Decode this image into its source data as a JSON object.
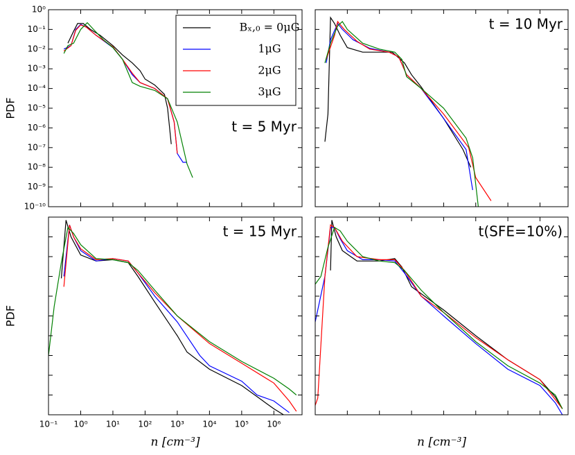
{
  "chart_data": [
    {
      "type": "line",
      "annotation": "t = 5 Myr",
      "ylabel": "PDF",
      "yscale": "log",
      "xscale": "log",
      "sharex": true,
      "legend": "upper right",
      "grid": false,
      "ylim": [
        1e-10,
        1
      ],
      "yticks": [
        {
          "value": 1,
          "label": "10⁰"
        },
        {
          "value": 0.1,
          "label": "10⁻¹"
        },
        {
          "value": 0.01,
          "label": "10⁻²"
        },
        {
          "value": 0.001,
          "label": "10⁻³"
        },
        {
          "value": 0.0001,
          "label": "10⁻⁴"
        },
        {
          "value": 1e-05,
          "label": "10⁻⁵"
        },
        {
          "value": 1e-06,
          "label": "10⁻⁶"
        },
        {
          "value": 1e-07,
          "label": "10⁻⁷"
        },
        {
          "value": 1e-08,
          "label": "10⁻⁸"
        },
        {
          "value": 1e-09,
          "label": "10⁻⁹"
        },
        {
          "value": 1e-10,
          "label": "10⁻¹⁰"
        }
      ],
      "series": [
        {
          "name": "Bₓ,₀ = 0μG",
          "color": "#000000",
          "x": [
            0.4,
            0.6,
            0.8,
            1.2,
            2,
            4,
            10,
            20,
            40,
            70,
            100,
            200,
            400,
            500,
            650
          ],
          "values": [
            0.02,
            0.08,
            0.2,
            0.2,
            0.1,
            0.05,
            0.015,
            0.005,
            0.002,
            0.0008,
            0.0003,
            0.00015,
            5e-05,
            1e-05,
            1.5e-07
          ]
        },
        {
          "name": "1μG",
          "color": "#0000ff",
          "x": [
            0.3,
            0.5,
            0.7,
            1,
            1.5,
            3,
            10,
            20,
            40,
            70,
            200,
            500,
            800,
            1000,
            1500,
            2000
          ],
          "values": [
            0.01,
            0.015,
            0.1,
            0.18,
            0.13,
            0.05,
            0.012,
            0.003,
            0.0005,
            0.0002,
            0.0001,
            3e-05,
            2e-06,
            5e-08,
            1.8e-08,
            1.8e-08
          ]
        },
        {
          "name": "2μG",
          "color": "#ff0000",
          "x": [
            0.3,
            0.5,
            0.7,
            1,
            1.5,
            3,
            10,
            20,
            40,
            70,
            200,
            500,
            800,
            1000
          ],
          "values": [
            0.008,
            0.015,
            0.09,
            0.17,
            0.13,
            0.05,
            0.013,
            0.003,
            0.0006,
            0.0002,
            0.0001,
            3e-05,
            2e-06,
            5e-08
          ]
        },
        {
          "name": "3μG",
          "color": "#008000",
          "x": [
            0.3,
            0.4,
            0.6,
            1,
            1.6,
            2.5,
            5,
            10,
            20,
            40,
            70,
            200,
            500,
            1000,
            2000,
            3000
          ],
          "values": [
            0.006,
            0.015,
            0.02,
            0.1,
            0.22,
            0.1,
            0.03,
            0.012,
            0.003,
            0.0002,
            0.00013,
            8e-05,
            3e-05,
            2e-06,
            1.5e-08,
            3e-09
          ]
        }
      ]
    },
    {
      "type": "line",
      "annotation": "t = 10 Myr",
      "yscale": "log",
      "xscale": "log",
      "sharex": true,
      "sharey": true,
      "grid": false,
      "series": [
        {
          "color": "#000000",
          "x": [
            0.2,
            0.25,
            0.3,
            0.4,
            0.6,
            1,
            3,
            10,
            25,
            60,
            100,
            200,
            1000,
            4000,
            7000
          ],
          "values": [
            2e-07,
            5e-06,
            0.4,
            0.2,
            0.05,
            0.012,
            0.007,
            0.007,
            0.007,
            0.002,
            0.0005,
            0.00012,
            3e-06,
            8e-08,
            1e-08
          ]
        },
        {
          "color": "#0000ff",
          "x": [
            0.22,
            0.3,
            0.5,
            0.7,
            1.5,
            5,
            20,
            40,
            70,
            200,
            1000,
            5000,
            8000
          ],
          "values": [
            0.002,
            0.03,
            0.2,
            0.1,
            0.03,
            0.011,
            0.007,
            0.004,
            0.0005,
            0.0001,
            3e-06,
            8e-08,
            7e-10
          ]
        },
        {
          "color": "#ff0000",
          "x": [
            0.22,
            0.4,
            0.5,
            0.8,
            2,
            5,
            20,
            40,
            70,
            200,
            1000,
            6000,
            10000,
            30000
          ],
          "values": [
            0.003,
            0.05,
            0.25,
            0.1,
            0.025,
            0.01,
            0.007,
            0.004,
            0.0005,
            0.0001,
            5e-06,
            1e-07,
            3e-09,
            2e-10
          ]
        },
        {
          "color": "#008000",
          "x": [
            0.2,
            0.3,
            0.5,
            0.7,
            1,
            3,
            10,
            30,
            50,
            70,
            200,
            1000,
            5000,
            8000,
            12000
          ],
          "values": [
            0.002,
            0.02,
            0.15,
            0.25,
            0.1,
            0.02,
            0.01,
            0.007,
            0.003,
            0.0004,
            0.0001,
            1e-05,
            3e-07,
            3e-08,
            1e-10
          ]
        }
      ]
    },
    {
      "type": "line",
      "annotation": "t = 15 Myr",
      "ylabel": "PDF",
      "xlabel": "n [cm⁻³]",
      "yscale": "log",
      "xscale": "log",
      "sharey": true,
      "grid": false,
      "xlim": [
        0.1,
        7500000
      ],
      "xticks": [
        {
          "value": 0.1,
          "label": "10⁻¹"
        },
        {
          "value": 1,
          "label": "10⁰"
        },
        {
          "value": 10,
          "label": "10¹"
        },
        {
          "value": 100,
          "label": "10²"
        },
        {
          "value": 1000,
          "label": "10³"
        },
        {
          "value": 10000,
          "label": "10⁴"
        },
        {
          "value": 100000,
          "label": "10⁵"
        },
        {
          "value": 1000000,
          "label": "10⁶"
        }
      ],
      "series": [
        {
          "color": "#000000",
          "x": [
            0.25,
            0.35,
            0.5,
            1,
            3,
            10,
            30,
            60,
            200,
            1000,
            2000,
            10000,
            100000,
            1000000,
            2000000
          ],
          "values": [
            0.0008,
            0.7,
            0.1,
            0.012,
            0.006,
            0.007,
            0.005,
            0.001,
            5e-05,
            1e-06,
            1.5e-07,
            2e-08,
            3e-09,
            2e-10,
            1e-10
          ]
        },
        {
          "color": "#0000ff",
          "x": [
            0.3,
            0.45,
            0.6,
            1,
            3,
            10,
            30,
            60,
            200,
            1000,
            5000,
            10000,
            100000,
            300000,
            1000000,
            3000000
          ],
          "values": [
            0.001,
            0.4,
            0.1,
            0.02,
            0.006,
            0.008,
            0.006,
            0.0015,
            0.0001,
            5e-06,
            1e-07,
            3e-08,
            5e-09,
            1e-09,
            5e-10,
            1.3e-10
          ]
        },
        {
          "color": "#ff0000",
          "x": [
            0.3,
            0.45,
            0.6,
            1,
            3,
            10,
            30,
            60,
            200,
            1000,
            10000,
            100000,
            1000000,
            3000000,
            5000000
          ],
          "values": [
            0.0003,
            0.4,
            0.1,
            0.025,
            0.007,
            0.008,
            0.006,
            0.0015,
            0.00015,
            1e-05,
            4e-07,
            4e-08,
            4e-09,
            5e-10,
            1.5e-10
          ]
        },
        {
          "color": "#008000",
          "x": [
            0.1,
            0.15,
            0.25,
            0.4,
            0.6,
            1,
            3,
            10,
            30,
            60,
            200,
            1000,
            10000,
            100000,
            1000000,
            3000000,
            5000000
          ],
          "values": [
            1e-07,
            3e-05,
            0.005,
            0.3,
            0.15,
            0.04,
            0.008,
            0.007,
            0.005,
            0.002,
            0.0002,
            1e-05,
            5e-07,
            5e-08,
            7e-09,
            2e-09,
            1e-09
          ]
        }
      ]
    },
    {
      "type": "line",
      "annotation": "t(SFE=10%)",
      "xlabel": "n [cm⁻³]",
      "yscale": "log",
      "xscale": "log",
      "sharex": true,
      "sharey": true,
      "grid": false,
      "series": [
        {
          "color": "#000000",
          "x": [
            0.3,
            0.33,
            0.45,
            0.7,
            2,
            10,
            30,
            50,
            100,
            1000,
            10000,
            100000,
            1000000,
            3000000,
            5000000
          ],
          "values": [
            0.002,
            0.7,
            0.1,
            0.02,
            0.006,
            0.006,
            0.008,
            0.003,
            0.0003,
            2e-05,
            1e-06,
            6e-08,
            6e-09,
            8e-10,
            2e-10
          ]
        },
        {
          "color": "#0000ff",
          "x": [
            0.1,
            0.2,
            0.3,
            0.4,
            0.6,
            1,
            3,
            10,
            30,
            60,
            200,
            1000,
            10000,
            100000,
            1000000,
            3000000,
            5000000
          ],
          "values": [
            5e-06,
            0.001,
            0.3,
            0.3,
            0.08,
            0.02,
            0.007,
            0.007,
            0.006,
            0.0015,
            0.0001,
            1e-05,
            4e-07,
            2e-08,
            3e-09,
            4e-10,
            1e-10
          ]
        },
        {
          "color": "#ff0000",
          "x": [
            0.1,
            0.12,
            0.2,
            0.3,
            0.4,
            0.7,
            2,
            10,
            30,
            60,
            200,
            1000,
            10000,
            100000,
            1000000,
            5000000
          ],
          "values": [
            3e-10,
            7e-10,
            0.001,
            0.4,
            0.3,
            0.06,
            0.01,
            0.007,
            0.007,
            0.002,
            0.0001,
            1.5e-05,
            8e-07,
            6e-08,
            6e-09,
            2e-10
          ]
        },
        {
          "color": "#008000",
          "x": [
            0.1,
            0.15,
            0.25,
            0.4,
            0.6,
            1,
            3,
            10,
            30,
            60,
            200,
            1000,
            10000,
            100000,
            1000000,
            3000000,
            5000000
          ],
          "values": [
            0.0004,
            0.001,
            0.03,
            0.3,
            0.2,
            0.06,
            0.01,
            0.006,
            0.005,
            0.002,
            0.0002,
            1.5e-05,
            5e-07,
            3e-08,
            4e-09,
            1e-09,
            2e-10
          ]
        }
      ]
    }
  ]
}
